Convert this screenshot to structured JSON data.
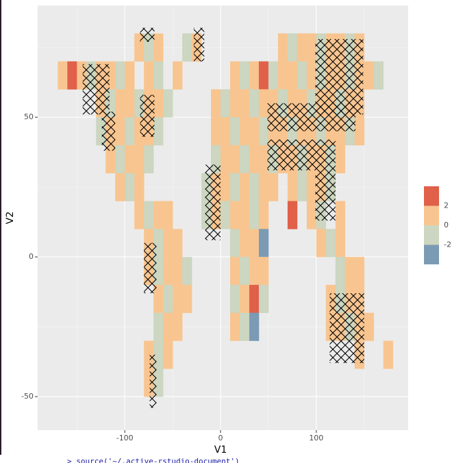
{
  "chart_data": {
    "type": "raster",
    "x_label": "V1",
    "y_label": "V2",
    "xlim": [
      -191,
      196
    ],
    "ylim": [
      -62,
      90
    ],
    "xticks": [
      -100,
      0,
      100
    ],
    "yticks": [
      -50,
      0,
      50
    ],
    "grid": true,
    "legend": {
      "position": "right",
      "breaks": [
        2,
        0,
        -2
      ],
      "colors": [
        "#e0604a",
        "#f8c590",
        "#ccd6c0",
        "#7b9bb5"
      ]
    },
    "rows": [
      {
        "y": 70,
        "x": [
          -90,
          -80,
          -70,
          -40,
          -30,
          60,
          70,
          80,
          90,
          100,
          110,
          120,
          130,
          140
        ],
        "values": [
          0.6,
          -0.4,
          0.9,
          -0.3,
          0.7,
          0.8,
          -0.5,
          0.6,
          1.1,
          -0.6,
          0.4,
          0.9,
          -0.3,
          0.7
        ]
      },
      {
        "y": 60,
        "x": [
          -170,
          -160,
          -150,
          -140,
          -130,
          -120,
          -110,
          -100,
          -80,
          -70,
          -50,
          10,
          20,
          30,
          40,
          50,
          60,
          70,
          80,
          90,
          100,
          110,
          120,
          130,
          140,
          150,
          160
        ],
        "values": [
          0.5,
          2.4,
          0.8,
          -0.4,
          0.9,
          0.6,
          -0.7,
          1.0,
          0.4,
          -0.5,
          0.7,
          0.8,
          -0.4,
          0.6,
          2.3,
          -0.6,
          0.9,
          0.5,
          -0.3,
          0.8,
          -0.5,
          0.7,
          1.2,
          -0.4,
          0.6,
          0.8,
          -0.2
        ]
      },
      {
        "y": 50,
        "x": [
          -130,
          -120,
          -110,
          -100,
          -90,
          -80,
          -70,
          -60,
          -10,
          0,
          10,
          20,
          30,
          40,
          50,
          60,
          70,
          80,
          90,
          100,
          110,
          120,
          130,
          140
        ],
        "values": [
          0.7,
          -0.5,
          0.9,
          0.6,
          -0.4,
          0.8,
          0.5,
          -0.6,
          0.9,
          -0.3,
          0.7,
          0.6,
          -0.5,
          0.8,
          0.4,
          -0.7,
          0.9,
          0.6,
          -0.4,
          0.7,
          0.5,
          -0.6,
          0.8,
          0.3
        ]
      },
      {
        "y": 40,
        "x": [
          -130,
          -120,
          -110,
          -100,
          -90,
          -80,
          -70,
          -10,
          0,
          10,
          20,
          30,
          40,
          50,
          60,
          70,
          80,
          90,
          100,
          110,
          120,
          130,
          140
        ],
        "values": [
          -0.4,
          0.8,
          0.6,
          -0.5,
          0.9,
          0.7,
          -0.3,
          0.6,
          0.8,
          -0.5,
          0.7,
          0.9,
          -0.4,
          0.6,
          0.5,
          -0.6,
          0.8,
          0.7,
          -0.3,
          0.9,
          0.4,
          -0.5,
          0.6
        ]
      },
      {
        "y": 30,
        "x": [
          -120,
          -110,
          -100,
          -90,
          -80,
          -10,
          0,
          10,
          20,
          30,
          40,
          50,
          60,
          70,
          80,
          90,
          100,
          110,
          120
        ],
        "values": [
          0.8,
          -0.4,
          0.7,
          0.5,
          -0.6,
          -0.5,
          0.8,
          0.6,
          -0.4,
          0.9,
          0.7,
          -0.3,
          0.6,
          0.8,
          -0.5,
          0.7,
          0.9,
          -0.4,
          0.6
        ]
      },
      {
        "y": 20,
        "x": [
          -110,
          -100,
          -90,
          -20,
          -10,
          0,
          10,
          20,
          30,
          40,
          50,
          70,
          80,
          90,
          100,
          110
        ],
        "values": [
          0.6,
          -0.5,
          0.8,
          -0.4,
          0.9,
          0.7,
          -0.6,
          0.8,
          -0.3,
          0.6,
          0.7,
          0.5,
          -0.4,
          0.8,
          0.6,
          -0.5
        ]
      },
      {
        "y": 10,
        "x": [
          -90,
          -80,
          -70,
          -60,
          -20,
          -10,
          0,
          10,
          20,
          30,
          40,
          70,
          90,
          100,
          120
        ],
        "values": [
          0.7,
          -0.4,
          0.8,
          0.6,
          -0.5,
          0.9,
          -0.3,
          0.7,
          0.6,
          -0.4,
          0.8,
          2.2,
          0.5,
          -0.6,
          0.7
        ]
      },
      {
        "y": 0,
        "x": [
          -80,
          -70,
          -60,
          -50,
          10,
          20,
          30,
          40,
          100,
          110,
          120
        ],
        "values": [
          0.8,
          -0.5,
          0.7,
          0.6,
          -0.4,
          0.9,
          0.7,
          -2.3,
          0.6,
          -0.4,
          0.5
        ]
      },
      {
        "y": -10,
        "x": [
          -80,
          -70,
          -60,
          -50,
          -40,
          10,
          20,
          30,
          40,
          120,
          130,
          140
        ],
        "values": [
          0.6,
          -0.4,
          0.8,
          0.7,
          -0.5,
          0.9,
          -0.3,
          0.7,
          0.6,
          -0.5,
          0.8,
          0.7
        ]
      },
      {
        "y": -20,
        "x": [
          -70,
          -60,
          -50,
          -40,
          10,
          20,
          30,
          40,
          110,
          120,
          130,
          140
        ],
        "values": [
          0.7,
          -0.5,
          0.8,
          0.6,
          -0.4,
          0.7,
          2.3,
          -0.6,
          0.8,
          -0.4,
          0.7,
          0.6
        ]
      },
      {
        "y": -30,
        "x": [
          -70,
          -60,
          -50,
          10,
          20,
          30,
          110,
          120,
          130,
          140,
          150
        ],
        "values": [
          -0.4,
          0.8,
          0.6,
          0.7,
          -0.5,
          -2.2,
          0.8,
          0.6,
          -0.4,
          0.7,
          0.5
        ]
      },
      {
        "y": -40,
        "x": [
          -80,
          -70,
          -60,
          140,
          170
        ],
        "values": [
          0.7,
          -0.4,
          0.6,
          0.8,
          0.5
        ]
      },
      {
        "y": -50,
        "x": [
          -80,
          -70
        ],
        "values": [
          0.6,
          -0.4
        ]
      }
    ],
    "hatched": [
      {
        "xlim": [
          -144,
          -116
        ],
        "ylim": [
          51,
          69
        ]
      },
      {
        "xlim": [
          -124,
          -110
        ],
        "ylim": [
          38,
          52
        ]
      },
      {
        "xlim": [
          -84,
          -69
        ],
        "ylim": [
          43,
          58
        ]
      },
      {
        "xlim": [
          -84,
          -69
        ],
        "ylim": [
          77,
          82
        ]
      },
      {
        "xlim": [
          -28,
          -17
        ],
        "ylim": [
          70,
          82
        ]
      },
      {
        "xlim": [
          99,
          149
        ],
        "ylim": [
          51,
          78
        ]
      },
      {
        "xlim": [
          49,
          141
        ],
        "ylim": [
          45,
          55
        ]
      },
      {
        "xlim": [
          49,
          120
        ],
        "ylim": [
          31,
          42
        ]
      },
      {
        "xlim": [
          99,
          120
        ],
        "ylim": [
          13,
          31
        ]
      },
      {
        "xlim": [
          -16,
          0
        ],
        "ylim": [
          6,
          33
        ]
      },
      {
        "xlim": [
          -80,
          -67
        ],
        "ylim": [
          -13,
          5
        ]
      },
      {
        "xlim": [
          -74,
          -67
        ],
        "ylim": [
          -54,
          -35
        ]
      },
      {
        "xlim": [
          114,
          150
        ],
        "ylim": [
          -38,
          -13
        ]
      }
    ]
  },
  "console_text": "> source('~/.active-rstudio-document')"
}
